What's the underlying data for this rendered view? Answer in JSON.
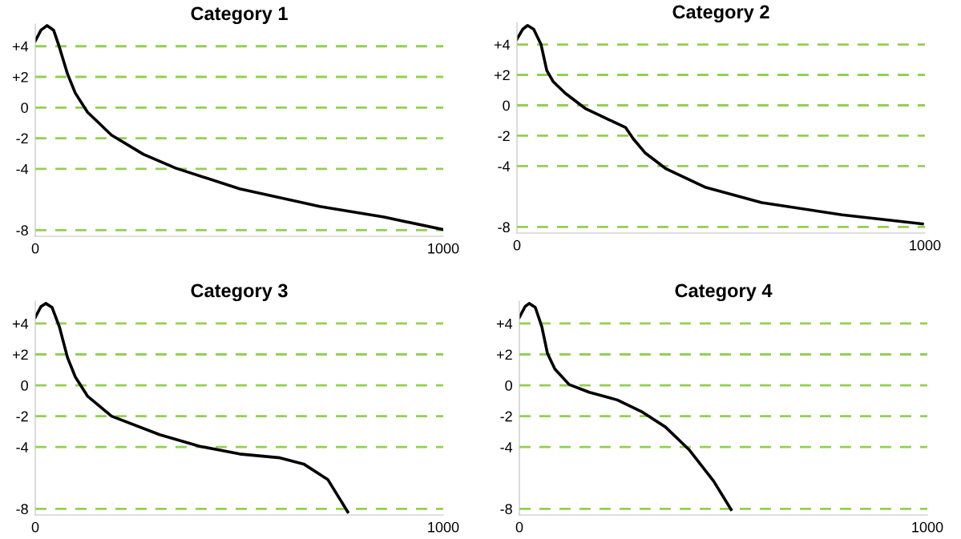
{
  "chart_data": [
    {
      "type": "line",
      "title": "Category 1",
      "xlim": [
        0,
        1000
      ],
      "xticks": [
        0,
        1000
      ],
      "ylim": [
        -8.4,
        5.45
      ],
      "yticks": [
        {
          "value": 4,
          "label": "+4"
        },
        {
          "value": 2,
          "label": "+2"
        },
        {
          "value": 0,
          "label": "0"
        },
        {
          "value": -2,
          "label": "-2"
        },
        {
          "value": -4,
          "label": "-4"
        },
        {
          "value": -8,
          "label": "-8"
        }
      ],
      "grid": "y",
      "line_style": "solid",
      "marker": "none",
      "series": [
        {
          "color": "#000000",
          "x": [
            0,
            14,
            29,
            45,
            59,
            79,
            98,
            128,
            187,
            265,
            344,
            501,
            697,
            855,
            998
          ],
          "values": [
            4.35,
            5.05,
            5.35,
            5.05,
            3.95,
            2.2,
            0.95,
            -0.3,
            -1.8,
            -3.05,
            -3.95,
            -5.3,
            -6.45,
            -7.15,
            -7.95
          ]
        }
      ]
    },
    {
      "type": "line",
      "title": "Category 2",
      "xlim": [
        0,
        1000
      ],
      "xticks": [
        0,
        1000
      ],
      "ylim": [
        -8.4,
        5.45
      ],
      "yticks": [
        {
          "value": 4,
          "label": "+4"
        },
        {
          "value": 2,
          "label": "+2"
        },
        {
          "value": 0,
          "label": "0"
        },
        {
          "value": -2,
          "label": "-2"
        },
        {
          "value": -4,
          "label": "-4"
        },
        {
          "value": -8,
          "label": "-8"
        }
      ],
      "grid": "y",
      "line_style": "solid",
      "marker": "none",
      "series": [
        {
          "color": "#000000",
          "x": [
            0,
            14,
            26,
            41,
            59,
            73,
            89,
            118,
            167,
            226,
            266,
            285,
            315,
            364,
            463,
            600,
            797,
            994
          ],
          "values": [
            4.35,
            5.0,
            5.25,
            5.0,
            4.0,
            2.3,
            1.55,
            0.8,
            -0.2,
            -0.95,
            -1.45,
            -2.2,
            -3.15,
            -4.15,
            -5.4,
            -6.4,
            -7.2,
            -7.8
          ]
        }
      ]
    },
    {
      "type": "line",
      "title": "Category 3",
      "xlim": [
        0,
        1000
      ],
      "xticks": [
        0,
        1000
      ],
      "ylim": [
        -8.4,
        5.45
      ],
      "yticks": [
        {
          "value": 4,
          "label": "+4"
        },
        {
          "value": 2,
          "label": "+2"
        },
        {
          "value": 0,
          "label": "0"
        },
        {
          "value": -2,
          "label": "-2"
        },
        {
          "value": -4,
          "label": "-4"
        },
        {
          "value": -8,
          "label": "-8"
        }
      ],
      "grid": "y",
      "line_style": "solid",
      "marker": "none",
      "series": [
        {
          "color": "#000000",
          "x": [
            0,
            14,
            26,
            41,
            59,
            79,
            98,
            128,
            187,
            305,
            403,
            501,
            600,
            658,
            717,
            766
          ],
          "values": [
            4.4,
            5.1,
            5.3,
            5.05,
            3.8,
            1.8,
            0.55,
            -0.7,
            -2.0,
            -3.2,
            -3.95,
            -4.45,
            -4.7,
            -5.1,
            -6.1,
            -8.2
          ]
        }
      ]
    },
    {
      "type": "line",
      "title": "Category 4",
      "xlim": [
        0,
        1000
      ],
      "xticks": [
        0,
        1000
      ],
      "ylim": [
        -8.4,
        5.45
      ],
      "yticks": [
        {
          "value": 4,
          "label": "+4"
        },
        {
          "value": 2,
          "label": "+2"
        },
        {
          "value": 0,
          "label": "0"
        },
        {
          "value": -2,
          "label": "-2"
        },
        {
          "value": -4,
          "label": "-4"
        },
        {
          "value": -8,
          "label": "-8"
        }
      ],
      "grid": "y",
      "line_style": "solid",
      "marker": "none",
      "series": [
        {
          "color": "#000000",
          "x": [
            0,
            14,
            24,
            39,
            55,
            69,
            87,
            122,
            171,
            240,
            299,
            358,
            417,
            476,
            519
          ],
          "values": [
            4.4,
            5.1,
            5.3,
            5.05,
            3.8,
            2.05,
            1.05,
            0.05,
            -0.45,
            -0.95,
            -1.7,
            -2.7,
            -4.2,
            -6.2,
            -8.05
          ]
        }
      ]
    }
  ]
}
